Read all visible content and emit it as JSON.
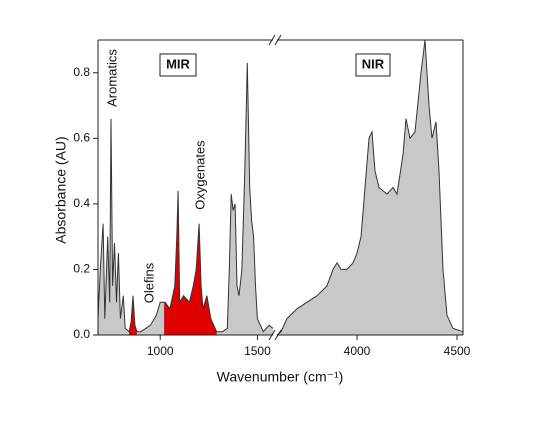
{
  "chart_data": {
    "type": "area",
    "xlabel": "Wavenumber (cm⁻¹)",
    "ylabel": "Absorbance (AU)",
    "ylim": [
      0,
      0.9
    ],
    "yticks": [
      {
        "value": 0,
        "label": "0.0"
      },
      0.2,
      0.4,
      0.6,
      0.8
    ],
    "fill_color": "#c8c8c8",
    "line_color": "#333333",
    "highlight_color": "#e00000",
    "highlight_ranges": [
      [
        840,
        880
      ],
      [
        1020,
        1290
      ]
    ],
    "annotations": [
      "Aromatics",
      "Olefins",
      "Oxygenates",
      "MIR",
      "NIR"
    ],
    "segments": [
      {
        "xlim": [
          680,
          1580
        ],
        "xticks": [
          1000,
          1500
        ],
        "x": [
          680,
          692,
          706,
          715,
          730,
          740,
          747,
          755,
          765,
          775,
          785,
          795,
          810,
          820,
          840,
          850,
          860,
          870,
          880,
          900,
          950,
          980,
          1000,
          1025,
          1050,
          1075,
          1085,
          1092,
          1100,
          1120,
          1150,
          1170,
          1185,
          1200,
          1210,
          1220,
          1240,
          1260,
          1290,
          1320,
          1345,
          1355,
          1365,
          1375,
          1385,
          1395,
          1405,
          1420,
          1435,
          1448,
          1460,
          1470,
          1480,
          1490,
          1500,
          1530,
          1560,
          1580
        ],
        "values": [
          0.05,
          0.2,
          0.34,
          0.05,
          0.3,
          0.1,
          0.66,
          0.15,
          0.28,
          0.1,
          0.25,
          0.05,
          0.12,
          0.02,
          0.01,
          0.04,
          0.12,
          0.03,
          0.01,
          0.01,
          0.03,
          0.06,
          0.1,
          0.1,
          0.08,
          0.15,
          0.3,
          0.44,
          0.1,
          0.12,
          0.1,
          0.15,
          0.2,
          0.34,
          0.15,
          0.08,
          0.12,
          0.05,
          0.01,
          0.01,
          0.02,
          0.2,
          0.43,
          0.38,
          0.4,
          0.15,
          0.12,
          0.2,
          0.5,
          0.83,
          0.45,
          0.35,
          0.3,
          0.15,
          0.05,
          0.01,
          0.03,
          0.02
        ]
      },
      {
        "xlim": [
          3600,
          4530
        ],
        "xticks": [
          4000,
          4500
        ],
        "x": [
          3600,
          3620,
          3650,
          3700,
          3750,
          3800,
          3850,
          3880,
          3900,
          3920,
          3950,
          3980,
          4000,
          4020,
          4040,
          4060,
          4075,
          4090,
          4110,
          4150,
          4180,
          4200,
          4230,
          4245,
          4265,
          4290,
          4320,
          4340,
          4360,
          4375,
          4395,
          4410,
          4430,
          4450,
          4480,
          4530
        ],
        "values": [
          0.0,
          0.01,
          0.05,
          0.08,
          0.1,
          0.12,
          0.15,
          0.2,
          0.22,
          0.2,
          0.2,
          0.22,
          0.25,
          0.3,
          0.45,
          0.6,
          0.62,
          0.5,
          0.45,
          0.43,
          0.45,
          0.43,
          0.55,
          0.66,
          0.6,
          0.62,
          0.8,
          0.9,
          0.7,
          0.6,
          0.65,
          0.5,
          0.2,
          0.06,
          0.02,
          0.01
        ]
      }
    ]
  }
}
